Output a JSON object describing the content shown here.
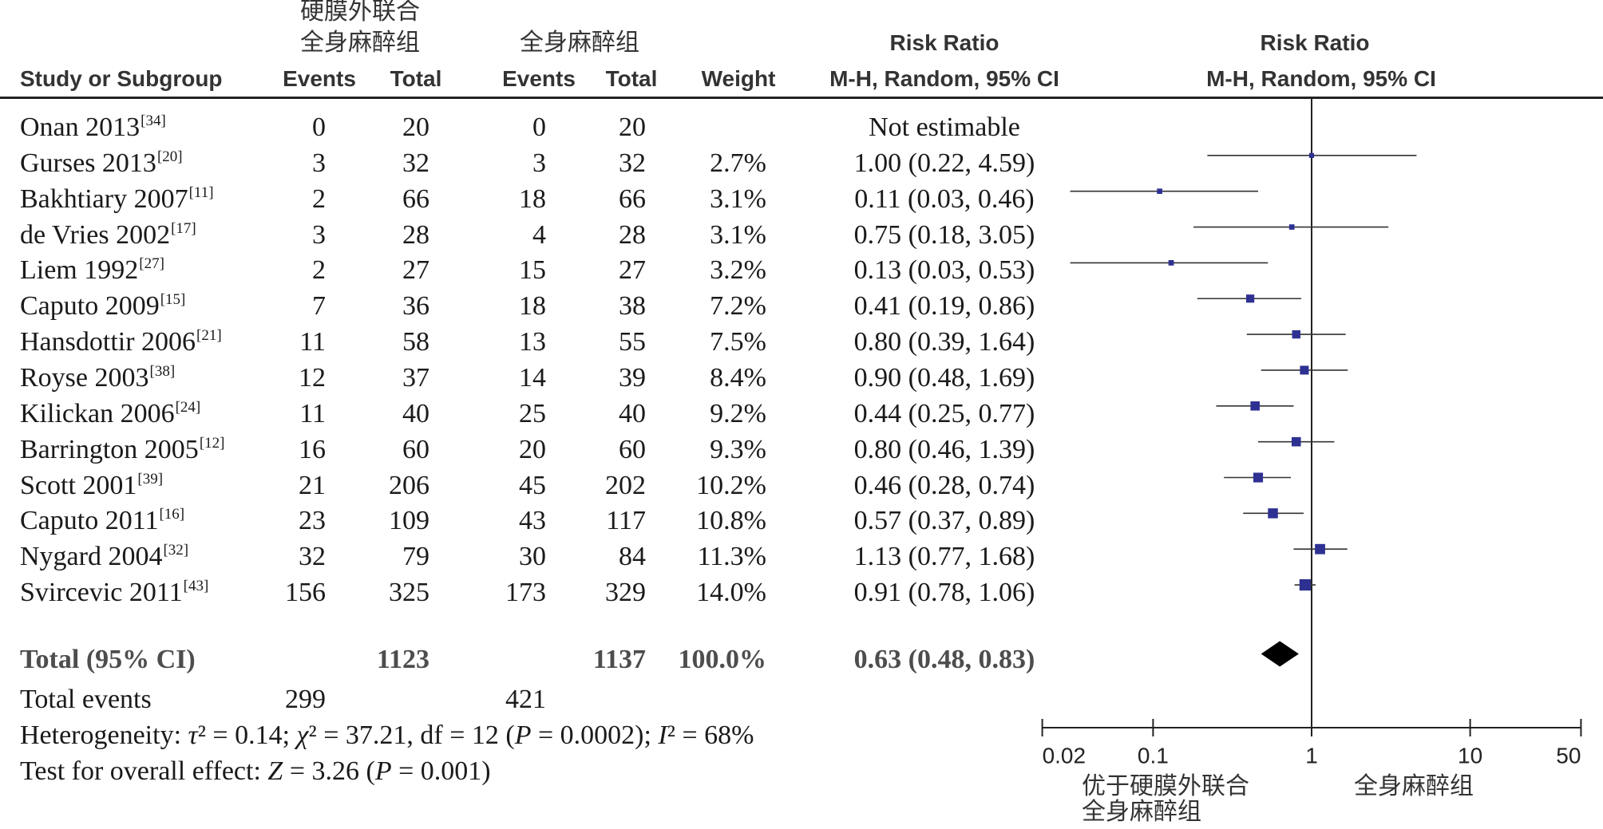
{
  "header": {
    "group_exp": [
      "硬膜外联合",
      "全身麻醉组"
    ],
    "group_ctl": "全身麻醉组",
    "rr_table": {
      "title": "Risk Ratio",
      "method": "M-H, Random, 95% CI"
    },
    "rr_plot": {
      "title": "Risk Ratio",
      "method": "M-H, Random, 95% CI"
    },
    "columns": {
      "study": "Study or Subgroup",
      "exp_events": "Events",
      "exp_total": "Total",
      "ctl_events": "Events",
      "ctl_total": "Total",
      "weight": "Weight"
    }
  },
  "total_events": {
    "label": "Total events",
    "exp": 299,
    "ctl": 421
  },
  "footer": {
    "heterogeneity": [
      "Heterogeneity: ",
      "τ",
      "² = 0.14; ",
      "χ",
      "² = 37.21, df = 12 (",
      "P",
      " = 0.0002); ",
      "I",
      "² = 68%"
    ],
    "overall": [
      "Test for overall effect: ",
      "Z",
      " = 3.26 (",
      "P",
      " = 0.001)"
    ]
  },
  "chart_data": {
    "type": "scatter",
    "x_scale": "log",
    "xlim": [
      0.02,
      50
    ],
    "xticks": [
      "0.02",
      "0.1",
      "1",
      "10",
      "50"
    ],
    "reference_value": 1,
    "xlabel_left": [
      "优于硬膜外联合",
      "全身麻醉组"
    ],
    "xlabel_right": "全身麻醉组",
    "colors": {
      "marker": "#2e3192",
      "diamond": "#000000",
      "ci_line": "#333333",
      "reference_line": "#222222"
    },
    "studies": [
      {
        "name": "Onan 2013",
        "ref": "[34]",
        "exp_events": 0,
        "exp_total": 20,
        "ctl_events": 0,
        "ctl_total": 20,
        "rr_text": "Not estimable"
      },
      {
        "name": "Gurses 2013",
        "ref": "[20]",
        "exp_events": 3,
        "exp_total": 32,
        "ctl_events": 3,
        "ctl_total": 32,
        "weight": "2.7%",
        "rr_text": "1.00 (0.22, 4.59)",
        "rr": 1.0,
        "lower": 0.22,
        "upper": 4.59
      },
      {
        "name": "Bakhtiary 2007",
        "ref": "[11]",
        "exp_events": 2,
        "exp_total": 66,
        "ctl_events": 18,
        "ctl_total": 66,
        "weight": "3.1%",
        "rr_text": "0.11 (0.03, 0.46)",
        "rr": 0.11,
        "lower": 0.03,
        "upper": 0.46
      },
      {
        "name": "de Vries 2002",
        "ref": "[17]",
        "exp_events": 3,
        "exp_total": 28,
        "ctl_events": 4,
        "ctl_total": 28,
        "weight": "3.1%",
        "rr_text": "0.75 (0.18, 3.05)",
        "rr": 0.75,
        "lower": 0.18,
        "upper": 3.05
      },
      {
        "name": "Liem 1992",
        "ref": "[27]",
        "exp_events": 2,
        "exp_total": 27,
        "ctl_events": 15,
        "ctl_total": 27,
        "weight": "3.2%",
        "rr_text": "0.13 (0.03, 0.53)",
        "rr": 0.13,
        "lower": 0.03,
        "upper": 0.53
      },
      {
        "name": "Caputo 2009",
        "ref": "[15]",
        "exp_events": 7,
        "exp_total": 36,
        "ctl_events": 18,
        "ctl_total": 38,
        "weight": "7.2%",
        "rr_text": "0.41 (0.19, 0.86)",
        "rr": 0.41,
        "lower": 0.19,
        "upper": 0.86
      },
      {
        "name": "Hansdottir 2006",
        "ref": "[21]",
        "exp_events": 11,
        "exp_total": 58,
        "ctl_events": 13,
        "ctl_total": 55,
        "weight": "7.5%",
        "rr_text": "0.80 (0.39, 1.64)",
        "rr": 0.8,
        "lower": 0.39,
        "upper": 1.64
      },
      {
        "name": "Royse 2003",
        "ref": "[38]",
        "exp_events": 12,
        "exp_total": 37,
        "ctl_events": 14,
        "ctl_total": 39,
        "weight": "8.4%",
        "rr_text": "0.90 (0.48, 1.69)",
        "rr": 0.9,
        "lower": 0.48,
        "upper": 1.69
      },
      {
        "name": "Kilickan 2006",
        "ref": "[24]",
        "exp_events": 11,
        "exp_total": 40,
        "ctl_events": 25,
        "ctl_total": 40,
        "weight": "9.2%",
        "rr_text": "0.44 (0.25, 0.77)",
        "rr": 0.44,
        "lower": 0.25,
        "upper": 0.77
      },
      {
        "name": "Barrington 2005",
        "ref": "[12]",
        "exp_events": 16,
        "exp_total": 60,
        "ctl_events": 20,
        "ctl_total": 60,
        "weight": "9.3%",
        "rr_text": "0.80 (0.46, 1.39)",
        "rr": 0.8,
        "lower": 0.46,
        "upper": 1.39
      },
      {
        "name": "Scott 2001",
        "ref": "[39]",
        "exp_events": 21,
        "exp_total": 206,
        "ctl_events": 45,
        "ctl_total": 202,
        "weight": "10.2%",
        "rr_text": "0.46 (0.28, 0.74)",
        "rr": 0.46,
        "lower": 0.28,
        "upper": 0.74
      },
      {
        "name": "Caputo 2011",
        "ref": "[16]",
        "exp_events": 23,
        "exp_total": 109,
        "ctl_events": 43,
        "ctl_total": 117,
        "weight": "10.8%",
        "rr_text": "0.57 (0.37, 0.89)",
        "rr": 0.57,
        "lower": 0.37,
        "upper": 0.89
      },
      {
        "name": "Nygard 2004",
        "ref": "[32]",
        "exp_events": 32,
        "exp_total": 79,
        "ctl_events": 30,
        "ctl_total": 84,
        "weight": "11.3%",
        "rr_text": "1.13 (0.77, 1.68)",
        "rr": 1.13,
        "lower": 0.77,
        "upper": 1.68
      },
      {
        "name": "Svircevic 2011",
        "ref": "[43]",
        "exp_events": 156,
        "exp_total": 325,
        "ctl_events": 173,
        "ctl_total": 329,
        "weight": "14.0%",
        "rr_text": "0.91 (0.78, 1.06)",
        "rr": 0.91,
        "lower": 0.78,
        "upper": 1.06
      }
    ],
    "total": {
      "label": "Total (95% CI)",
      "exp_total": 1123,
      "ctl_total": 1137,
      "weight": "100.0%",
      "rr_text": "0.63 (0.48, 0.83)",
      "rr": 0.63,
      "lower": 0.48,
      "upper": 0.83
    }
  }
}
